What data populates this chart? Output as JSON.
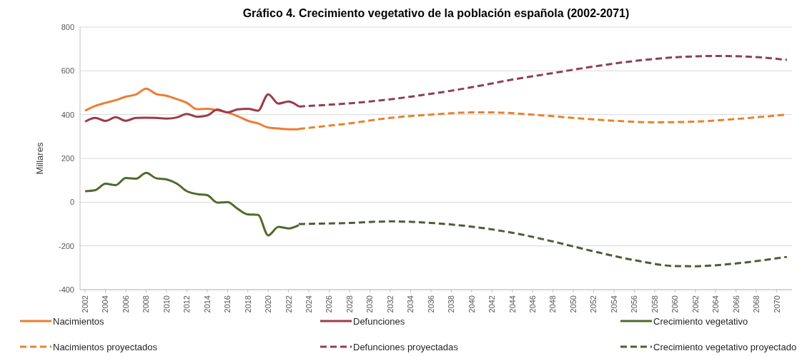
{
  "chart_data": {
    "type": "line",
    "title": "Gráfico 4. Crecimiento vegetativo de la población española (2002-2071)",
    "ylabel": "Millares",
    "xlim": [
      2001.5,
      2071.5
    ],
    "xticks": [
      2002,
      2004,
      2006,
      2008,
      2010,
      2012,
      2014,
      2016,
      2018,
      2020,
      2022,
      2024,
      2026,
      2028,
      2030,
      2032,
      2034,
      2036,
      2038,
      2040,
      2042,
      2044,
      2046,
      2048,
      2050,
      2052,
      2054,
      2056,
      2058,
      2060,
      2062,
      2064,
      2066,
      2068,
      2070
    ],
    "ylim": [
      -400,
      800
    ],
    "yticks": [
      -400,
      -200,
      0,
      200,
      400,
      600,
      800
    ],
    "grid": "y",
    "legend": "bottom",
    "series": [
      {
        "name": "Nacimientos",
        "color": "#ed7d31",
        "line_style": "solid",
        "x": [
          2002,
          2003,
          2004,
          2005,
          2006,
          2007,
          2008,
          2009,
          2010,
          2011,
          2012,
          2013,
          2014,
          2015,
          2016,
          2017,
          2018,
          2019,
          2020,
          2021,
          2022,
          2023
        ],
        "values": [
          418,
          440,
          454,
          466,
          482,
          492,
          519,
          494,
          486,
          471,
          454,
          425,
          427,
          420,
          410,
          393,
          372,
          360,
          341,
          337,
          333,
          333
        ]
      },
      {
        "name": "Defunciones",
        "color": "#9e3a4a",
        "line_style": "solid",
        "x": [
          2002,
          2003,
          2004,
          2005,
          2006,
          2007,
          2008,
          2009,
          2010,
          2011,
          2012,
          2013,
          2014,
          2015,
          2016,
          2017,
          2018,
          2019,
          2020,
          2021,
          2022,
          2023
        ],
        "values": [
          368,
          385,
          371,
          388,
          372,
          385,
          386,
          385,
          382,
          387,
          403,
          390,
          396,
          423,
          410,
          424,
          427,
          418,
          493,
          450,
          460,
          437
        ]
      },
      {
        "name": "Crecimiento vegetativo",
        "color": "#4f6b2a",
        "line_style": "solid",
        "x": [
          2002,
          2003,
          2004,
          2005,
          2006,
          2007,
          2008,
          2009,
          2010,
          2011,
          2012,
          2013,
          2014,
          2015,
          2016,
          2017,
          2018,
          2019,
          2020,
          2021,
          2022,
          2023
        ],
        "values": [
          50,
          55,
          84,
          78,
          110,
          107,
          134,
          109,
          104,
          85,
          50,
          37,
          32,
          -2,
          0,
          -31,
          -56,
          -58,
          -152,
          -113,
          -120,
          -105
        ]
      },
      {
        "name": "Nacimientos proyectados",
        "color": "#e9822b",
        "line_style": "dashed",
        "x": [
          2023,
          2028,
          2032,
          2036,
          2040,
          2042,
          2046,
          2050,
          2054,
          2058,
          2062,
          2066,
          2071
        ],
        "values": [
          335,
          360,
          385,
          400,
          410,
          410,
          400,
          385,
          372,
          365,
          368,
          380,
          400
        ]
      },
      {
        "name": "Defunciones proyectadas",
        "color": "#8e4054",
        "line_style": "dashed",
        "x": [
          2023,
          2026,
          2030,
          2036,
          2040,
          2044,
          2048,
          2052,
          2056,
          2060,
          2064,
          2068,
          2071
        ],
        "values": [
          437,
          445,
          460,
          495,
          525,
          560,
          590,
          620,
          645,
          662,
          668,
          663,
          650
        ]
      },
      {
        "name": "Crecimiento vegetativo proyectado",
        "color": "#4e5e36",
        "line_style": "dashed",
        "x": [
          2023,
          2028,
          2032,
          2036,
          2040,
          2044,
          2048,
          2052,
          2056,
          2060,
          2062,
          2066,
          2071
        ],
        "values": [
          -100,
          -95,
          -88,
          -95,
          -112,
          -140,
          -180,
          -225,
          -265,
          -292,
          -293,
          -280,
          -250
        ]
      }
    ]
  }
}
